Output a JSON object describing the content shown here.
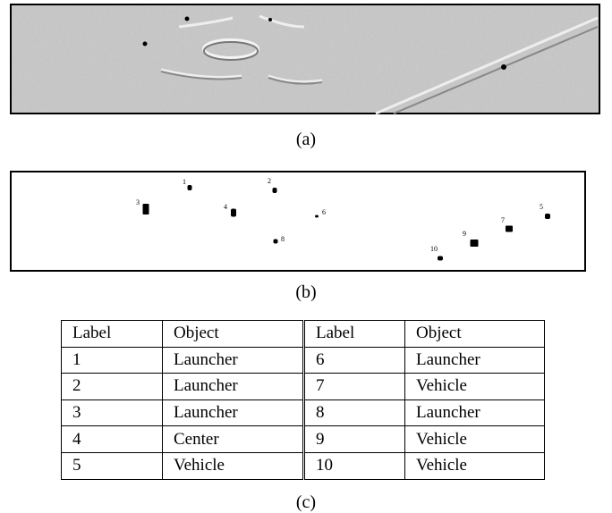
{
  "panels": [
    {
      "caption": "(a)"
    },
    {
      "caption": "(b)",
      "labels": [
        "1",
        "2",
        "3",
        "4",
        "5",
        "6",
        "7",
        "8",
        "9",
        "10"
      ]
    }
  ],
  "table": {
    "header": [
      "Label",
      "Object",
      "Label",
      "Object"
    ],
    "rows": [
      [
        "1",
        "Launcher",
        "6",
        "Launcher"
      ],
      [
        "2",
        "Launcher",
        "7",
        "Vehicle"
      ],
      [
        "3",
        "Launcher",
        "8",
        "Launcher"
      ],
      [
        "4",
        "Center",
        "9",
        "Vehicle"
      ],
      [
        "5",
        "Vehicle",
        "10",
        "Vehicle"
      ]
    ],
    "caption": "(c)"
  }
}
